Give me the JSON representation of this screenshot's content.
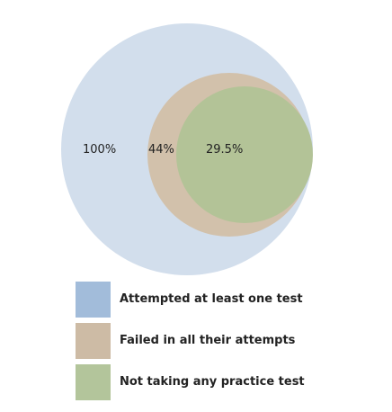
{
  "diagram": {
    "circles": [
      {
        "label": "100%",
        "fill": "#d2deec"
      },
      {
        "label": "44%",
        "fill": "#d2c1ab"
      },
      {
        "label": "29.5%",
        "fill": "#b3c397"
      }
    ]
  },
  "legend": {
    "items": [
      {
        "label": "Attempted at least one test",
        "color": "#a2bcda"
      },
      {
        "label": "Failed in all their attempts",
        "color": "#cdbba5"
      },
      {
        "label": "Not taking any practice test",
        "color": "#b3c59b"
      }
    ]
  }
}
